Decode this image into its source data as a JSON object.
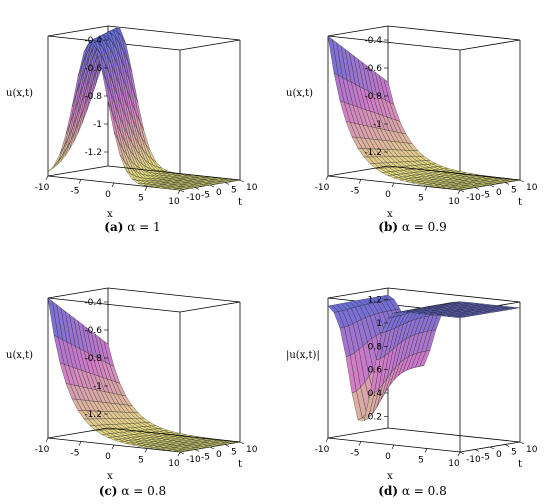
{
  "chart_data": [
    {
      "type": "surface3d",
      "panel_label": "(a)",
      "caption": "α = 1",
      "xlabel": "x",
      "tlabel": "t",
      "zlabel": "u(x,t)",
      "x_ticks": [
        "-10",
        "-5",
        "0",
        "5",
        "10"
      ],
      "t_ticks": [
        "-10",
        "-5",
        "0",
        "5",
        "10"
      ],
      "z_ticks": [
        "-0.4",
        "-0.6",
        "-0.8",
        "-1",
        "-1.2"
      ],
      "xlim": [
        -10,
        10
      ],
      "tlim": [
        -10,
        10
      ],
      "zlim": [
        -1.3,
        -0.3
      ],
      "surface": "hump"
    },
    {
      "type": "surface3d",
      "panel_label": "(b)",
      "caption": "α = 0.9",
      "xlabel": "x",
      "tlabel": "t",
      "zlabel": "u(x,t)",
      "x_ticks": [
        "-10",
        "-5",
        "0",
        "5",
        "10"
      ],
      "t_ticks": [
        "-10",
        "-5",
        "0",
        "5",
        "10"
      ],
      "z_ticks": [
        "-0.4",
        "-0.6",
        "-0.8",
        "-1",
        "-1.2"
      ],
      "xlim": [
        -10,
        10
      ],
      "tlim": [
        -10,
        10
      ],
      "zlim": [
        -1.3,
        -0.3
      ],
      "surface": "decay"
    },
    {
      "type": "surface3d",
      "panel_label": "(c)",
      "caption": "α = 0.8",
      "xlabel": "x",
      "tlabel": "t",
      "zlabel": "u(x,t)",
      "x_ticks": [
        "-10",
        "-5",
        "0",
        "5",
        "10"
      ],
      "t_ticks": [
        "-10",
        "-5",
        "0",
        "5",
        "10"
      ],
      "z_ticks": [
        "-0.4",
        "-0.6",
        "-0.8",
        "-1",
        "-1.2"
      ],
      "xlim": [
        -10,
        10
      ],
      "tlim": [
        -10,
        10
      ],
      "zlim": [
        -1.3,
        -0.3
      ],
      "surface": "decay"
    },
    {
      "type": "surface3d",
      "panel_label": "(d)",
      "caption": "α = 0.8",
      "xlabel": "x",
      "tlabel": "t",
      "zlabel": "|u(x,t)|",
      "x_ticks": [
        "-10",
        "-5",
        "0",
        "5",
        "10"
      ],
      "t_ticks": [
        "-10",
        "-5",
        "0",
        "5",
        "10"
      ],
      "z_ticks": [
        "1.2",
        "1",
        "0.8",
        "0.6",
        "0.4",
        "0.2"
      ],
      "xlim": [
        -10,
        10
      ],
      "tlim": [
        -10,
        10
      ],
      "zlim": [
        0.1,
        1.3
      ],
      "surface": "modulus"
    }
  ],
  "colors": {
    "low": "#e8e67a",
    "mid": "#d07ac8",
    "high": "#5b6bd8",
    "accent": "#7fd0d8"
  }
}
